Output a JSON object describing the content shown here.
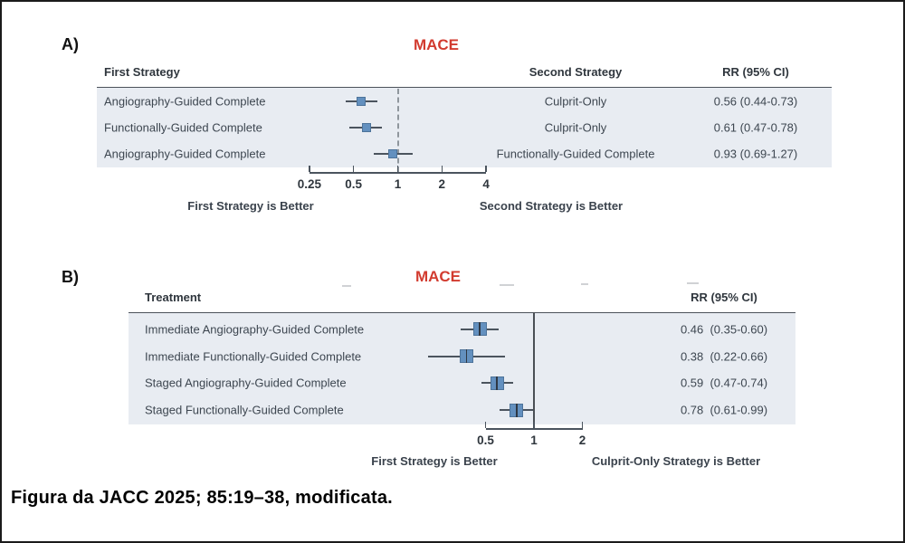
{
  "figure": {
    "caption": "Figura da JACC 2025; 85:19–38, modificata."
  },
  "colors": {
    "title_red": "#d23b2f",
    "marker_blue": "#6390bf",
    "band_background": "#e8ecf2",
    "ci_line": "#4b545e",
    "text": "#3d4650"
  },
  "panelA": {
    "label": "A)",
    "title": "MACE",
    "columns": {
      "first": "First Strategy",
      "second": "Second Strategy",
      "rr": "RR (95% CI)"
    },
    "rows": [
      {
        "first": "Angiography-Guided Complete",
        "second": "Culprit-Only",
        "rr_text": "0.56 (0.44-0.73)"
      },
      {
        "first": "Functionally-Guided Complete",
        "second": "Culprit-Only",
        "rr_text": "0.61 (0.47-0.78)"
      },
      {
        "first": "Angiography-Guided Complete",
        "second": "Functionally-Guided Complete",
        "rr_text": "0.93 (0.69-1.27)"
      }
    ],
    "footer_left": "First Strategy is Better",
    "footer_right": "Second Strategy is Better"
  },
  "panelB": {
    "label": "B)",
    "title": "MACE",
    "columns": {
      "treatment": "Treatment",
      "rr": "RR (95% CI)"
    },
    "rows": [
      {
        "treatment": "Immediate Angiography-Guided Complete",
        "rr_text": "0.46  (0.35-0.60)"
      },
      {
        "treatment": "Immediate Functionally-Guided Complete",
        "rr_text": "0.38  (0.22-0.66)"
      },
      {
        "treatment": "Staged Angiography-Guided Complete",
        "rr_text": "0.59  (0.47-0.74)"
      },
      {
        "treatment": "Staged Functionally-Guided Complete",
        "rr_text": "0.78  (0.61-0.99)"
      }
    ],
    "footer_left": "First Strategy is Better",
    "footer_right": "Culprit-Only Strategy is Better"
  },
  "chart_data": [
    {
      "type": "forest",
      "panel": "A",
      "title": "MACE",
      "x_scale": "log",
      "axis_ticks": [
        0.25,
        0.5,
        1,
        2,
        4
      ],
      "reference_line": 1,
      "xlim": [
        0.25,
        4
      ],
      "left_direction_label": "First Strategy is Better",
      "right_direction_label": "Second Strategy is Better",
      "rows": [
        {
          "first_strategy": "Angiography-Guided Complete",
          "second_strategy": "Culprit-Only",
          "rr": 0.56,
          "ci_low": 0.44,
          "ci_high": 0.73
        },
        {
          "first_strategy": "Functionally-Guided Complete",
          "second_strategy": "Culprit-Only",
          "rr": 0.61,
          "ci_low": 0.47,
          "ci_high": 0.78
        },
        {
          "first_strategy": "Angiography-Guided Complete",
          "second_strategy": "Functionally-Guided Complete",
          "rr": 0.93,
          "ci_low": 0.69,
          "ci_high": 1.27
        }
      ]
    },
    {
      "type": "forest",
      "panel": "B",
      "title": "MACE",
      "x_scale": "log",
      "axis_ticks": [
        0.5,
        1,
        2
      ],
      "reference_line": 1,
      "xlim": [
        0.5,
        2
      ],
      "left_direction_label": "First Strategy is Better",
      "right_direction_label": "Culprit-Only Strategy is Better",
      "rows": [
        {
          "treatment": "Immediate Angiography-Guided Complete",
          "rr": 0.46,
          "ci_low": 0.35,
          "ci_high": 0.6
        },
        {
          "treatment": "Immediate Functionally-Guided Complete",
          "rr": 0.38,
          "ci_low": 0.22,
          "ci_high": 0.66
        },
        {
          "treatment": "Staged Angiography-Guided Complete",
          "rr": 0.59,
          "ci_low": 0.47,
          "ci_high": 0.74
        },
        {
          "treatment": "Staged Functionally-Guided Complete",
          "rr": 0.78,
          "ci_low": 0.61,
          "ci_high": 0.99
        }
      ]
    }
  ]
}
